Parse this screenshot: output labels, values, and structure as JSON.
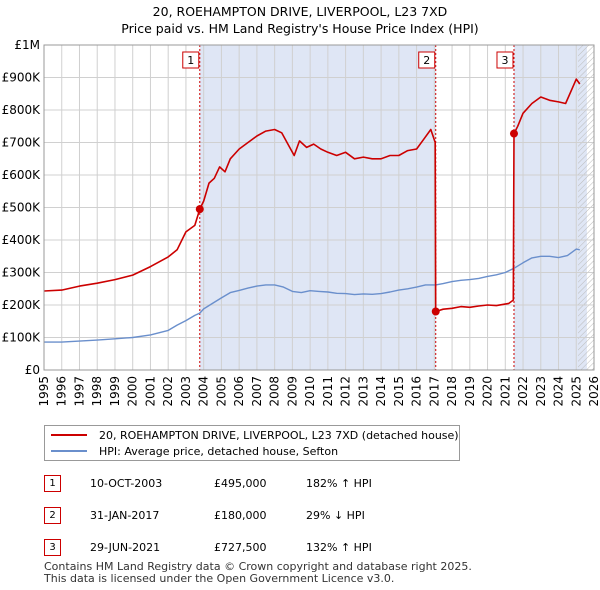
{
  "title_line1": "20, ROEHAMPTON DRIVE, LIVERPOOL, L23 7XD",
  "title_line2": "Price paid vs. HM Land Registry's House Price Index (HPI)",
  "colors": {
    "property": "#cc0000",
    "hpi": "#6a8fcc",
    "shade": "#dfe6f5",
    "grid": "#d0d0d0"
  },
  "chart_data": {
    "type": "line",
    "xlim": [
      1995,
      2026
    ],
    "ylim": [
      0,
      1000000
    ],
    "yticks": [
      {
        "value": 0,
        "label": "£0"
      },
      {
        "value": 100000,
        "label": "£100K"
      },
      {
        "value": 200000,
        "label": "£200K"
      },
      {
        "value": 300000,
        "label": "£300K"
      },
      {
        "value": 400000,
        "label": "£400K"
      },
      {
        "value": 500000,
        "label": "£500K"
      },
      {
        "value": 600000,
        "label": "£600K"
      },
      {
        "value": 700000,
        "label": "£700K"
      },
      {
        "value": 800000,
        "label": "£800K"
      },
      {
        "value": 900000,
        "label": "£900K"
      },
      {
        "value": 1000000,
        "label": "£1M"
      }
    ],
    "xticks": [
      "1995",
      "1996",
      "1997",
      "1998",
      "1999",
      "2000",
      "2001",
      "2002",
      "2003",
      "2004",
      "2005",
      "2006",
      "2007",
      "2008",
      "2009",
      "2010",
      "2011",
      "2012",
      "2013",
      "2014",
      "2015",
      "2016",
      "2017",
      "2018",
      "2019",
      "2020",
      "2021",
      "2022",
      "2023",
      "2024",
      "2025",
      "2026"
    ],
    "shaded_ranges": [
      [
        2003.78,
        2017.08
      ],
      [
        2021.49,
        2025.6
      ]
    ],
    "hatched_after": 2025.1,
    "series": [
      {
        "name": "20, ROEHAMPTON DRIVE, LIVERPOOL, L23 7XD (detached house)",
        "color": "#cc0000",
        "x": [
          1995,
          1996,
          1997,
          1998,
          1999,
          2000,
          2001,
          2002,
          2002.5,
          2003,
          2003.5,
          2003.78,
          2004,
          2004.3,
          2004.6,
          2004.9,
          2005.2,
          2005.5,
          2006,
          2006.5,
          2007,
          2007.5,
          2008,
          2008.4,
          2008.8,
          2009.1,
          2009.4,
          2009.8,
          2010.2,
          2010.6,
          2011,
          2011.5,
          2012,
          2012.5,
          2013,
          2013.5,
          2014,
          2014.5,
          2015,
          2015.5,
          2016,
          2016.4,
          2016.8,
          2017.05,
          2017.08,
          2017.5,
          2018,
          2018.5,
          2019,
          2019.5,
          2020,
          2020.5,
          2021.2,
          2021.45,
          2021.49,
          2021.7,
          2022,
          2022.5,
          2023,
          2023.5,
          2024,
          2024.4,
          2024.8,
          2025.0,
          2025.2
        ],
        "values": [
          243000,
          246000,
          258000,
          267000,
          278000,
          292000,
          318000,
          348000,
          370000,
          425000,
          445000,
          495000,
          520000,
          575000,
          590000,
          625000,
          610000,
          650000,
          680000,
          700000,
          720000,
          735000,
          740000,
          730000,
          690000,
          660000,
          705000,
          685000,
          695000,
          680000,
          670000,
          660000,
          670000,
          650000,
          655000,
          650000,
          650000,
          660000,
          660000,
          675000,
          680000,
          710000,
          740000,
          700000,
          180000,
          187000,
          190000,
          195000,
          193000,
          197000,
          200000,
          198000,
          205000,
          215000,
          727500,
          750000,
          790000,
          820000,
          840000,
          830000,
          825000,
          820000,
          870000,
          895000,
          880000
        ]
      },
      {
        "name": "HPI: Average price, detached house, Sefton",
        "color": "#6a8fcc",
        "x": [
          1995,
          1996,
          1997,
          1998,
          1999,
          2000,
          2001,
          2002,
          2002.5,
          2003,
          2003.5,
          2003.78,
          2004,
          2004.5,
          2005,
          2005.5,
          2006,
          2006.5,
          2007,
          2007.5,
          2008,
          2008.5,
          2009,
          2009.5,
          2010,
          2010.5,
          2011,
          2011.5,
          2012,
          2012.5,
          2013,
          2013.5,
          2014,
          2014.5,
          2015,
          2015.5,
          2016,
          2016.5,
          2017,
          2017.08,
          2017.5,
          2018,
          2018.5,
          2019,
          2019.5,
          2020,
          2020.5,
          2021,
          2021.49,
          2022,
          2022.5,
          2023,
          2023.5,
          2024,
          2024.5,
          2025.0,
          2025.2
        ],
        "values": [
          86000,
          86000,
          89000,
          92000,
          96000,
          100000,
          108000,
          122000,
          138000,
          152000,
          168000,
          175000,
          188000,
          205000,
          222000,
          238000,
          245000,
          252000,
          258000,
          262000,
          262000,
          255000,
          242000,
          238000,
          244000,
          242000,
          240000,
          236000,
          235000,
          232000,
          234000,
          233000,
          235000,
          240000,
          246000,
          250000,
          255000,
          262000,
          262000,
          262000,
          266000,
          272000,
          276000,
          278000,
          282000,
          288000,
          293000,
          300000,
          313000,
          330000,
          345000,
          350000,
          350000,
          346000,
          352000,
          372000,
          370000
        ]
      }
    ],
    "sales": [
      {
        "num": "1",
        "x": 2003.78,
        "value": 495000,
        "date": "10-OCT-2003",
        "price": "£495,000",
        "hpi": "182% ↑ HPI"
      },
      {
        "num": "2",
        "x": 2017.08,
        "value": 180000,
        "date": "31-JAN-2017",
        "price": "£180,000",
        "hpi": "29% ↓ HPI"
      },
      {
        "num": "3",
        "x": 2021.49,
        "value": 727500,
        "date": "29-JUN-2021",
        "price": "£727,500",
        "hpi": "132% ↑ HPI"
      }
    ]
  },
  "footer_line1": "Contains HM Land Registry data © Crown copyright and database right 2025.",
  "footer_line2": "This data is licensed under the Open Government Licence v3.0."
}
